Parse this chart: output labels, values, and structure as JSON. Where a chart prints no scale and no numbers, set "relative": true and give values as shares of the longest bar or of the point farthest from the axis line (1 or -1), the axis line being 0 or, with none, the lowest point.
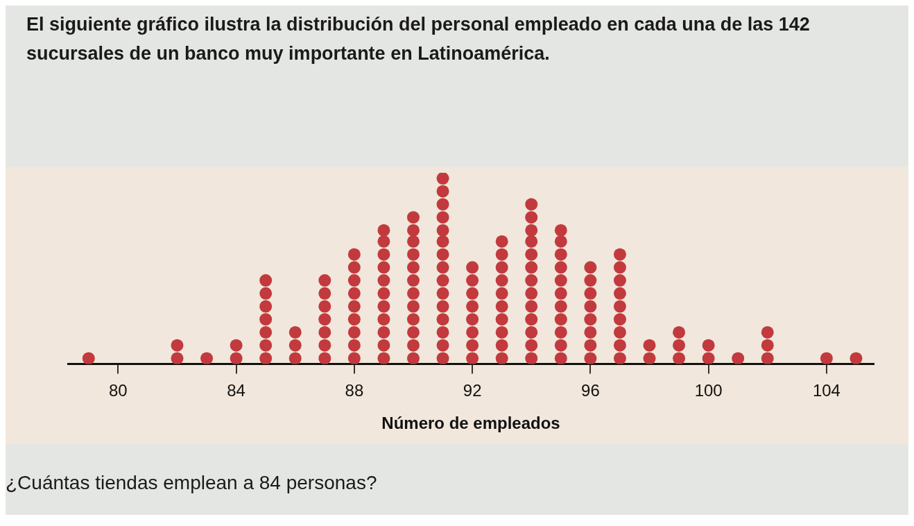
{
  "chart_data": {
    "type": "scatter",
    "title": "El siguiente gráfico ilustra la distribución del personal empleado en cada una de las 142 sucursales de un banco muy importante en Latinoamérica.",
    "xlabel": "Número de empleados",
    "annotations": [
      "¿Cuántas tiendas emplean a 84 personas?"
    ],
    "x": [
      79,
      82,
      82,
      83,
      84,
      84,
      85,
      85,
      85,
      85,
      85,
      85,
      85,
      86,
      86,
      86,
      87,
      87,
      87,
      87,
      87,
      87,
      87,
      88,
      88,
      88,
      88,
      88,
      88,
      88,
      88,
      88,
      89,
      89,
      89,
      89,
      89,
      89,
      89,
      89,
      89,
      89,
      89,
      90,
      90,
      90,
      90,
      90,
      90,
      90,
      90,
      90,
      90,
      90,
      90,
      91,
      91,
      91,
      91,
      91,
      91,
      91,
      91,
      91,
      91,
      91,
      91,
      91,
      91,
      91,
      92,
      92,
      92,
      92,
      92,
      92,
      92,
      92,
      93,
      93,
      93,
      93,
      93,
      93,
      93,
      93,
      93,
      93,
      94,
      94,
      94,
      94,
      94,
      94,
      94,
      94,
      94,
      94,
      94,
      94,
      94,
      95,
      95,
      95,
      95,
      95,
      95,
      95,
      95,
      95,
      95,
      95,
      96,
      96,
      96,
      96,
      96,
      96,
      96,
      96,
      97,
      97,
      97,
      97,
      97,
      97,
      97,
      97,
      97,
      98,
      98,
      99,
      99,
      99,
      100,
      100,
      101,
      102,
      102,
      102,
      104,
      105
    ],
    "values": [
      0.03,
      0.03,
      0.1,
      0.03,
      0.03,
      0.1,
      0.03,
      0.1,
      0.17,
      0.24,
      0.31,
      0.38,
      0.45,
      0.03,
      0.1,
      0.17,
      0.03,
      0.1,
      0.17,
      0.24,
      0.31,
      0.38,
      0.45,
      0.03,
      0.1,
      0.17,
      0.24,
      0.31,
      0.38,
      0.45,
      0.52,
      0.59,
      0.03,
      0.1,
      0.17,
      0.24,
      0.31,
      0.38,
      0.45,
      0.52,
      0.59,
      0.66,
      0.72,
      0.03,
      0.1,
      0.17,
      0.24,
      0.31,
      0.38,
      0.45,
      0.52,
      0.59,
      0.66,
      0.72,
      0.79,
      0.03,
      0.1,
      0.17,
      0.24,
      0.31,
      0.38,
      0.45,
      0.52,
      0.59,
      0.66,
      0.72,
      0.79,
      0.86,
      0.93,
      1,
      0.03,
      0.1,
      0.17,
      0.24,
      0.31,
      0.38,
      0.45,
      0.52,
      0.03,
      0.1,
      0.17,
      0.24,
      0.31,
      0.38,
      0.45,
      0.52,
      0.59,
      0.66,
      0.03,
      0.1,
      0.17,
      0.24,
      0.31,
      0.38,
      0.45,
      0.52,
      0.59,
      0.66,
      0.72,
      0.79,
      0.86,
      0.03,
      0.1,
      0.17,
      0.24,
      0.31,
      0.38,
      0.45,
      0.52,
      0.59,
      0.66,
      0.72,
      0.03,
      0.1,
      0.17,
      0.24,
      0.31,
      0.38,
      0.45,
      0.52,
      0.03,
      0.1,
      0.17,
      0.24,
      0.31,
      0.38,
      0.45,
      0.52,
      0.59,
      0.03,
      0.1,
      0.03,
      0.1,
      0.17,
      0.03,
      0.1,
      0.03,
      0.03,
      0.1,
      0.17,
      0.03,
      0.03
    ],
    "relative": true,
    "color": "#c23a3e",
    "marker": "circle",
    "xlim": [
      78.3,
      105.6
    ],
    "xticks": [
      80,
      84,
      88,
      92,
      96,
      100,
      104
    ],
    "tick_labels": "x",
    "grid": false,
    "legend": false
  }
}
